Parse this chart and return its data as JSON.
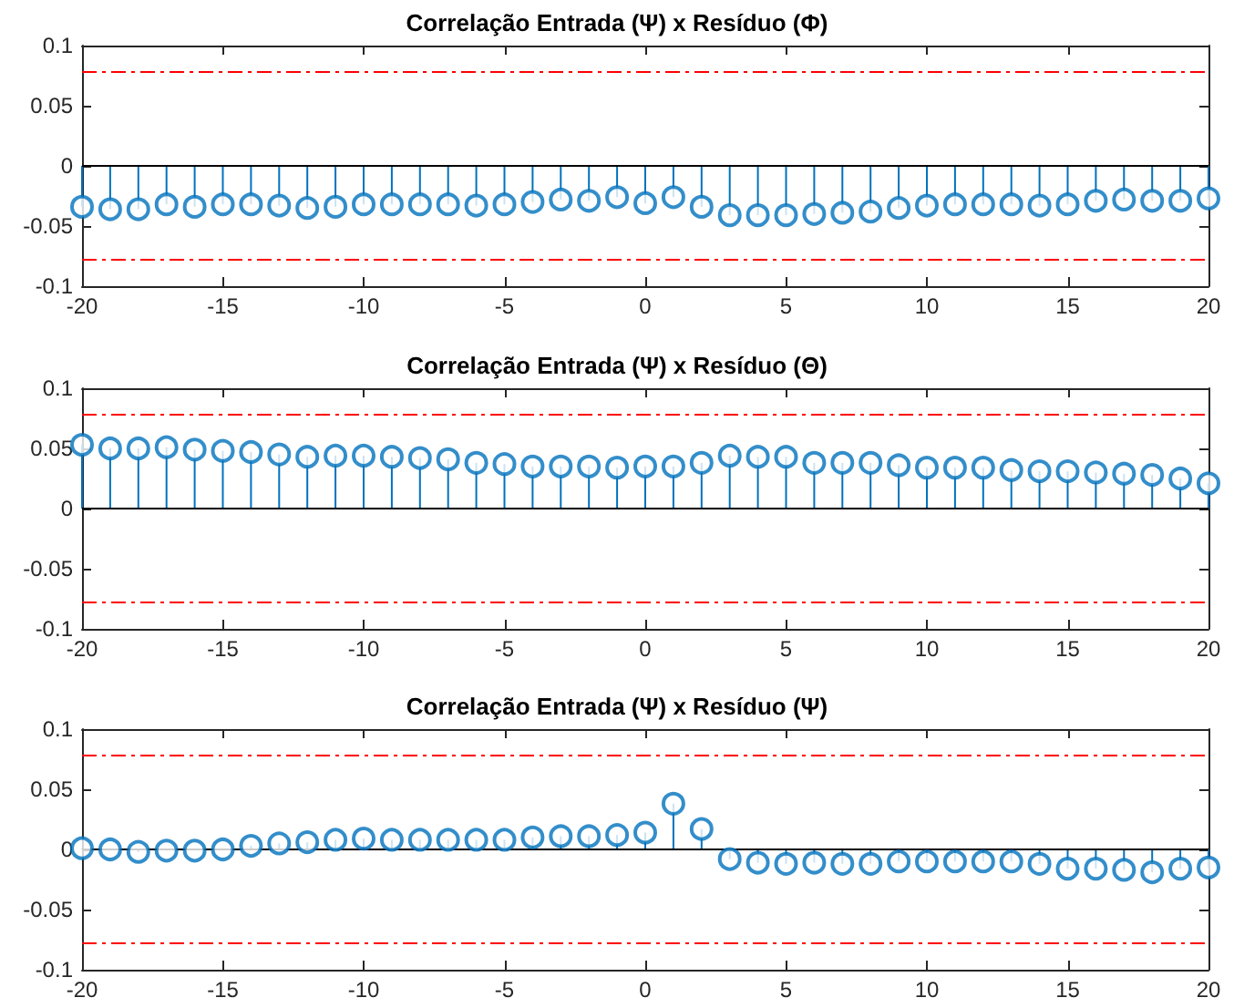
{
  "chart_data": [
    {
      "type": "lollipop",
      "title": "Correlação Entrada (Ψ) x Resíduo (Φ)",
      "x": [
        -20,
        -19,
        -18,
        -17,
        -16,
        -15,
        -14,
        -13,
        -12,
        -11,
        -10,
        -9,
        -8,
        -7,
        -6,
        -5,
        -4,
        -3,
        -2,
        -1,
        0,
        1,
        2,
        3,
        4,
        5,
        6,
        7,
        8,
        9,
        10,
        11,
        12,
        13,
        14,
        15,
        16,
        17,
        18,
        19,
        20
      ],
      "series": [
        {
          "color": "#0072bd",
          "values": [
            -0.034,
            -0.036,
            -0.036,
            -0.032,
            -0.034,
            -0.032,
            -0.032,
            -0.033,
            -0.035,
            -0.034,
            -0.032,
            -0.032,
            -0.032,
            -0.032,
            -0.033,
            -0.032,
            -0.03,
            -0.028,
            -0.029,
            -0.026,
            -0.031,
            -0.026,
            -0.034,
            -0.041,
            -0.041,
            -0.041,
            -0.04,
            -0.039,
            -0.038,
            -0.035,
            -0.033,
            -0.032,
            -0.032,
            -0.032,
            -0.033,
            -0.032,
            -0.029,
            -0.028,
            -0.029,
            -0.029,
            -0.027
          ]
        }
      ],
      "xlim": [
        -20,
        20
      ],
      "xticks": [
        -20,
        -15,
        -10,
        -5,
        0,
        5,
        10,
        15,
        20
      ],
      "ylim": [
        -0.1,
        0.1
      ],
      "yticks": [
        -0.1,
        -0.05,
        0,
        0.05,
        0.1
      ],
      "ref_lines": [
        {
          "axis": "y",
          "value": 0.078,
          "color": "#ff0000",
          "line_style": "dashdot"
        },
        {
          "axis": "y",
          "value": -0.078,
          "color": "#ff0000",
          "line_style": "dashdot"
        },
        {
          "axis": "y",
          "value": 0,
          "color": "#000000",
          "line_style": "solid"
        }
      ],
      "grid": false,
      "marker": "circle"
    },
    {
      "type": "lollipop",
      "title": "Correlação Entrada (Ψ) x Resíduo (Θ)",
      "x": [
        -20,
        -19,
        -18,
        -17,
        -16,
        -15,
        -14,
        -13,
        -12,
        -11,
        -10,
        -9,
        -8,
        -7,
        -6,
        -5,
        -4,
        -3,
        -2,
        -1,
        0,
        1,
        2,
        3,
        4,
        5,
        6,
        7,
        8,
        9,
        10,
        11,
        12,
        13,
        14,
        15,
        16,
        17,
        18,
        19,
        20
      ],
      "series": [
        {
          "color": "#0072bd",
          "values": [
            0.053,
            0.05,
            0.05,
            0.051,
            0.049,
            0.048,
            0.047,
            0.045,
            0.043,
            0.044,
            0.044,
            0.043,
            0.042,
            0.041,
            0.038,
            0.037,
            0.035,
            0.035,
            0.035,
            0.034,
            0.035,
            0.035,
            0.038,
            0.044,
            0.043,
            0.043,
            0.038,
            0.038,
            0.038,
            0.036,
            0.034,
            0.034,
            0.034,
            0.032,
            0.031,
            0.031,
            0.03,
            0.029,
            0.028,
            0.025,
            0.021
          ]
        }
      ],
      "xlim": [
        -20,
        20
      ],
      "xticks": [
        -20,
        -15,
        -10,
        -5,
        0,
        5,
        10,
        15,
        20
      ],
      "ylim": [
        -0.1,
        0.1
      ],
      "yticks": [
        -0.1,
        -0.05,
        0,
        0.05,
        0.1
      ],
      "ref_lines": [
        {
          "axis": "y",
          "value": 0.078,
          "color": "#ff0000",
          "line_style": "dashdot"
        },
        {
          "axis": "y",
          "value": -0.078,
          "color": "#ff0000",
          "line_style": "dashdot"
        },
        {
          "axis": "y",
          "value": 0,
          "color": "#000000",
          "line_style": "solid"
        }
      ],
      "grid": false,
      "marker": "circle"
    },
    {
      "type": "lollipop",
      "title": "Correlação Entrada (Ψ) x Resíduo (Ψ)",
      "x": [
        -20,
        -19,
        -18,
        -17,
        -16,
        -15,
        -14,
        -13,
        -12,
        -11,
        -10,
        -9,
        -8,
        -7,
        -6,
        -5,
        -4,
        -3,
        -2,
        -1,
        0,
        1,
        2,
        3,
        4,
        5,
        6,
        7,
        8,
        9,
        10,
        11,
        12,
        13,
        14,
        15,
        16,
        17,
        18,
        19,
        20
      ],
      "series": [
        {
          "color": "#0072bd",
          "values": [
            0.001,
            0,
            -0.002,
            -0.001,
            -0.001,
            0,
            0.003,
            0.005,
            0.006,
            0.008,
            0.009,
            0.008,
            0.008,
            0.008,
            0.008,
            0.008,
            0.01,
            0.011,
            0.011,
            0.012,
            0.014,
            0.038,
            0.017,
            -0.008,
            -0.011,
            -0.012,
            -0.011,
            -0.012,
            -0.012,
            -0.01,
            -0.01,
            -0.01,
            -0.01,
            -0.01,
            -0.012,
            -0.016,
            -0.016,
            -0.017,
            -0.019,
            -0.016,
            -0.015
          ]
        }
      ],
      "xlim": [
        -20,
        20
      ],
      "xticks": [
        -20,
        -15,
        -10,
        -5,
        0,
        5,
        10,
        15,
        20
      ],
      "ylim": [
        -0.1,
        0.1
      ],
      "yticks": [
        -0.1,
        -0.05,
        0,
        0.05,
        0.1
      ],
      "ref_lines": [
        {
          "axis": "y",
          "value": 0.078,
          "color": "#ff0000",
          "line_style": "dashdot"
        },
        {
          "axis": "y",
          "value": -0.078,
          "color": "#ff0000",
          "line_style": "dashdot"
        },
        {
          "axis": "y",
          "value": 0,
          "color": "#000000",
          "line_style": "solid"
        }
      ],
      "grid": false,
      "marker": "circle"
    }
  ]
}
